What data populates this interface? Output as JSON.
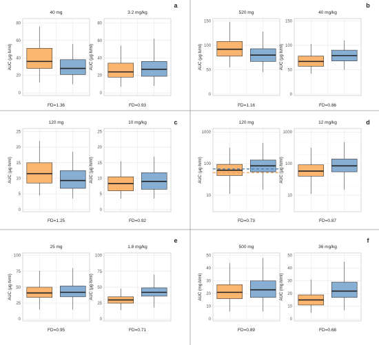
{
  "colors": {
    "orange": "#FBB56E",
    "blue": "#87AED3",
    "median": "#222222",
    "grid": "#E6E6E6",
    "frame": "#BDBDBD",
    "divider": "#999999",
    "dash_orange": "#F0A050",
    "dash_blue": "#4A7FB8"
  },
  "chart_data": [
    {
      "type": "box",
      "letter": "",
      "title": "40 mg",
      "ylabel": "AUC (μg·h/ml)",
      "footer": "FD=1.36",
      "scale": "linear",
      "ylim": [
        -3,
        85
      ],
      "yticks": [
        "0",
        "20",
        "40",
        "60",
        "80"
      ],
      "series": [
        {
          "min": 12,
          "q1": 28,
          "median": 36,
          "q3": 51,
          "max": 76
        },
        {
          "min": 10,
          "q1": 21,
          "median": 28,
          "q3": 38,
          "max": 56
        }
      ]
    },
    {
      "type": "box",
      "letter": "a",
      "title": "3.2 mg/kg",
      "ylabel": "AUC (μg·h/ml)",
      "footer": "FD=0.93",
      "scale": "linear",
      "ylim": [
        -3,
        85
      ],
      "yticks": [
        "0",
        "20",
        "40",
        "60",
        "80"
      ],
      "series": [
        {
          "min": 7,
          "q1": 18,
          "median": 24,
          "q3": 34,
          "max": 54
        },
        {
          "min": 8,
          "q1": 19,
          "median": 27,
          "q3": 36,
          "max": 62
        }
      ]
    },
    {
      "type": "box",
      "letter": "",
      "title": "520 mg",
      "ylabel": "AUC (μg·h/ml)",
      "footer": "FD=1.16",
      "scale": "linear",
      "ylim": [
        -3,
        155
      ],
      "yticks": [
        "0",
        "50",
        "100",
        "150"
      ],
      "series": [
        {
          "min": 55,
          "q1": 78,
          "median": 92,
          "q3": 108,
          "max": 148
        },
        {
          "min": 45,
          "q1": 67,
          "median": 80,
          "q3": 93,
          "max": 128
        }
      ]
    },
    {
      "type": "box",
      "letter": "b",
      "title": "40 mg/kg",
      "ylabel": "AUC (μg·h/ml)",
      "footer": "FD=0.86",
      "scale": "linear",
      "ylim": [
        -3,
        155
      ],
      "yticks": [
        "0",
        "50",
        "100",
        "150"
      ],
      "series": [
        {
          "min": 42,
          "q1": 57,
          "median": 67,
          "q3": 78,
          "max": 103
        },
        {
          "min": 50,
          "q1": 68,
          "median": 79,
          "q3": 90,
          "max": 110
        }
      ]
    },
    {
      "type": "box",
      "letter": "",
      "title": "120 mg",
      "ylabel": "AUC (μg·h/ml)",
      "footer": "FD=1.25",
      "scale": "linear",
      "ylim": [
        -0.7,
        26
      ],
      "yticks": [
        "0",
        "5",
        "10",
        "15",
        "20",
        "25"
      ],
      "series": [
        {
          "min": 4.5,
          "q1": 8.5,
          "median": 11.5,
          "q3": 15,
          "max": 22
        },
        {
          "min": 3.5,
          "q1": 6.8,
          "median": 9.3,
          "q3": 12.5,
          "max": 18.5
        }
      ]
    },
    {
      "type": "box",
      "letter": "c",
      "title": "10 mg/kg",
      "ylabel": "AUC (μg·h/ml)",
      "footer": "FD=0.92",
      "scale": "linear",
      "ylim": [
        -0.7,
        26
      ],
      "yticks": [
        "0",
        "5",
        "10",
        "15",
        "20",
        "25"
      ],
      "series": [
        {
          "min": 3.5,
          "q1": 6,
          "median": 8.3,
          "q3": 10.5,
          "max": 15.5
        },
        {
          "min": 3.5,
          "q1": 6.5,
          "median": 9,
          "q3": 11.8,
          "max": 17
        }
      ]
    },
    {
      "type": "box",
      "letter": "",
      "title": "120 mg",
      "ylabel": "AUC (μg·h/ml)",
      "footer": "FD=0.73",
      "scale": "log",
      "ylim": [
        3,
        1300
      ],
      "yticks": [
        "10",
        "100",
        "1000"
      ],
      "ytick_values": [
        10,
        100,
        1000
      ],
      "series": [
        {
          "min": 11,
          "q1": 42,
          "median": 62,
          "q3": 95,
          "max": 320
        },
        {
          "min": 15,
          "q1": 55,
          "median": 85,
          "q3": 130,
          "max": 460
        }
      ],
      "reference_lines": [
        {
          "value": 52,
          "color": "dash_orange"
        },
        {
          "value": 68,
          "color": "dash_blue"
        }
      ]
    },
    {
      "type": "box",
      "letter": "d",
      "title": "12 mg/kg",
      "ylabel": "AUC (μg·h/ml)",
      "footer": "FD=0.87",
      "scale": "log",
      "ylim": [
        3,
        1300
      ],
      "yticks": [
        "10",
        "100",
        "1000"
      ],
      "ytick_values": [
        10,
        100,
        1000
      ],
      "series": [
        {
          "min": 11,
          "q1": 40,
          "median": 58,
          "q3": 92,
          "max": 320
        },
        {
          "min": 15,
          "q1": 55,
          "median": 85,
          "q3": 140,
          "max": 480
        }
      ]
    },
    {
      "type": "box",
      "letter": "",
      "title": "25 mg",
      "ylabel": "AUC (μg·h/ml)",
      "footer": "FD=0.95",
      "scale": "linear",
      "ylim": [
        -3,
        104
      ],
      "yticks": [
        "0",
        "25",
        "50",
        "75",
        "100"
      ],
      "series": [
        {
          "min": 15,
          "q1": 34,
          "median": 41,
          "q3": 50,
          "max": 76
        },
        {
          "min": 15,
          "q1": 35,
          "median": 42,
          "q3": 52,
          "max": 80
        }
      ]
    },
    {
      "type": "box",
      "letter": "e",
      "title": "1.8 mg/kg",
      "ylabel": "AUC (μg·h/ml)",
      "footer": "FD=0.71",
      "scale": "linear",
      "ylim": [
        -3,
        104
      ],
      "yticks": [
        "0",
        "25",
        "50",
        "75",
        "100"
      ],
      "series": [
        {
          "min": 14,
          "q1": 25,
          "median": 30,
          "q3": 35,
          "max": 48
        },
        {
          "min": 18,
          "q1": 36,
          "median": 42,
          "q3": 49,
          "max": 70
        }
      ]
    },
    {
      "type": "box",
      "letter": "",
      "title": "500 mg",
      "ylabel": "AUC (mg·h/ml)",
      "footer": "FD=0.89",
      "scale": "linear",
      "ylim": [
        -1.5,
        52
      ],
      "yticks": [
        "0",
        "10",
        "20",
        "30",
        "40",
        "50"
      ],
      "series": [
        {
          "min": 6,
          "q1": 16,
          "median": 21,
          "q3": 27,
          "max": 44
        },
        {
          "min": 6,
          "q1": 17,
          "median": 23,
          "q3": 30,
          "max": 48
        }
      ]
    },
    {
      "type": "box",
      "letter": "f",
      "title": "36 mg/kg",
      "ylabel": "AUC (mg·h/ml)",
      "footer": "FD=0.68",
      "scale": "linear",
      "ylim": [
        -1.5,
        52
      ],
      "yticks": [
        "0",
        "10",
        "20",
        "30",
        "40",
        "50"
      ],
      "series": [
        {
          "min": 5,
          "q1": 11,
          "median": 15,
          "q3": 19,
          "max": 31
        },
        {
          "min": 7,
          "q1": 17,
          "median": 22,
          "q3": 29,
          "max": 45
        }
      ]
    }
  ]
}
